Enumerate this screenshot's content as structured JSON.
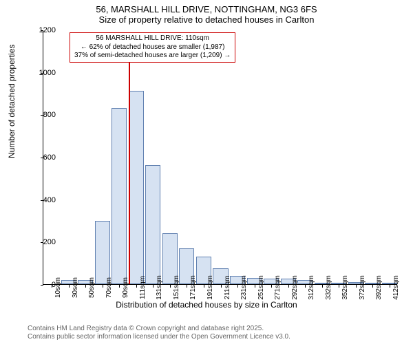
{
  "titles": {
    "line1": "56, MARSHALL HILL DRIVE, NOTTINGHAM, NG3 6FS",
    "line2": "Size of property relative to detached houses in Carlton"
  },
  "chart": {
    "type": "histogram",
    "y_axis": {
      "label": "Number of detached properties",
      "min": 0,
      "max": 1200,
      "ticks": [
        0,
        200,
        400,
        600,
        800,
        1000,
        1200
      ]
    },
    "x_axis": {
      "label": "Distribution of detached houses by size in Carlton",
      "tick_labels": [
        "10sqm",
        "30sqm",
        "50sqm",
        "70sqm",
        "90sqm",
        "111sqm",
        "131sqm",
        "151sqm",
        "171sqm",
        "191sqm",
        "211sqm",
        "231sqm",
        "251sqm",
        "271sqm",
        "292sqm",
        "312sqm",
        "332sqm",
        "352sqm",
        "372sqm",
        "392sqm",
        "412sqm"
      ]
    },
    "bars": {
      "values": [
        0,
        20,
        20,
        300,
        830,
        910,
        560,
        240,
        170,
        130,
        75,
        40,
        30,
        25,
        25,
        18,
        8,
        4,
        10,
        4,
        2
      ],
      "fill": "#d6e2f2",
      "border": "#6080b0",
      "width_ratio": 0.9
    },
    "reference_line": {
      "position_index": 5.05,
      "color": "#cc0000"
    },
    "info_box": {
      "line1": "56 MARSHALL HILL DRIVE: 110sqm",
      "line2": "← 62% of detached houses are smaller (1,987)",
      "line3": "37% of semi-detached houses are larger (1,209) →",
      "border_color": "#cc0000"
    },
    "background": "#ffffff"
  },
  "attribution": {
    "line1": "Contains HM Land Registry data © Crown copyright and database right 2025.",
    "line2": "Contains public sector information licensed under the Open Government Licence v3.0."
  }
}
